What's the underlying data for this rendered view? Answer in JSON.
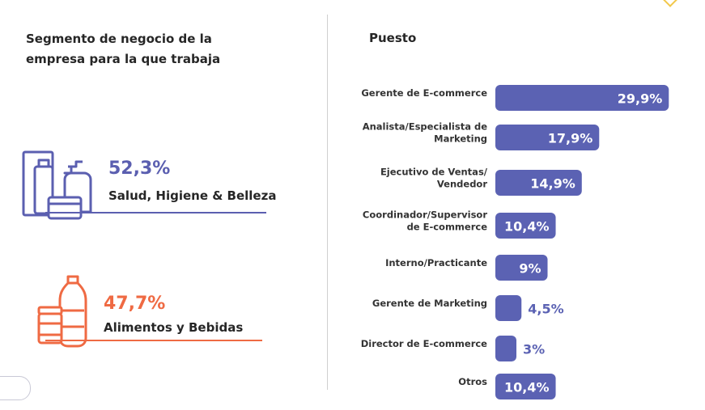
{
  "left_panel": {
    "title": "Segmento de negocio de la empresa para la que trabaja",
    "segments": [
      {
        "percent": "52,3%",
        "label": "Salud, Higiene & Belleza",
        "icon": "cosmetics-bottles-icon",
        "color": "#5b5fb0"
      },
      {
        "percent": "47,7%",
        "label": "Alimentos y Bebidas",
        "icon": "food-bottle-jar-icon",
        "color": "#ef6a43"
      }
    ]
  },
  "chart_data": {
    "type": "bar",
    "orientation": "horizontal",
    "title": "Puesto",
    "categories": [
      [
        "Gerente de E-commerce"
      ],
      [
        "Analista/Especialista de",
        "Marketing"
      ],
      [
        "Ejecutivo de Ventas/",
        "Vendedor"
      ],
      [
        "Coordinador/Supervisor",
        "de E-commerce"
      ],
      [
        "Interno/Practicante"
      ],
      [
        "Gerente de Marketing"
      ],
      [
        "Director de E-commerce"
      ],
      [
        "Otros"
      ]
    ],
    "values": [
      29.9,
      17.9,
      14.9,
      10.4,
      9,
      4.5,
      3,
      10.4
    ],
    "value_labels": [
      "29,9%",
      "17,9%",
      "14,9%",
      "10,4%",
      "9%",
      "4,5%",
      "3%",
      "10,4%"
    ],
    "bar_color": "#5b62b3",
    "inside_label_color": "#ffffff",
    "outside_label_color": "#5b62b3",
    "xlim": [
      0,
      30
    ]
  }
}
